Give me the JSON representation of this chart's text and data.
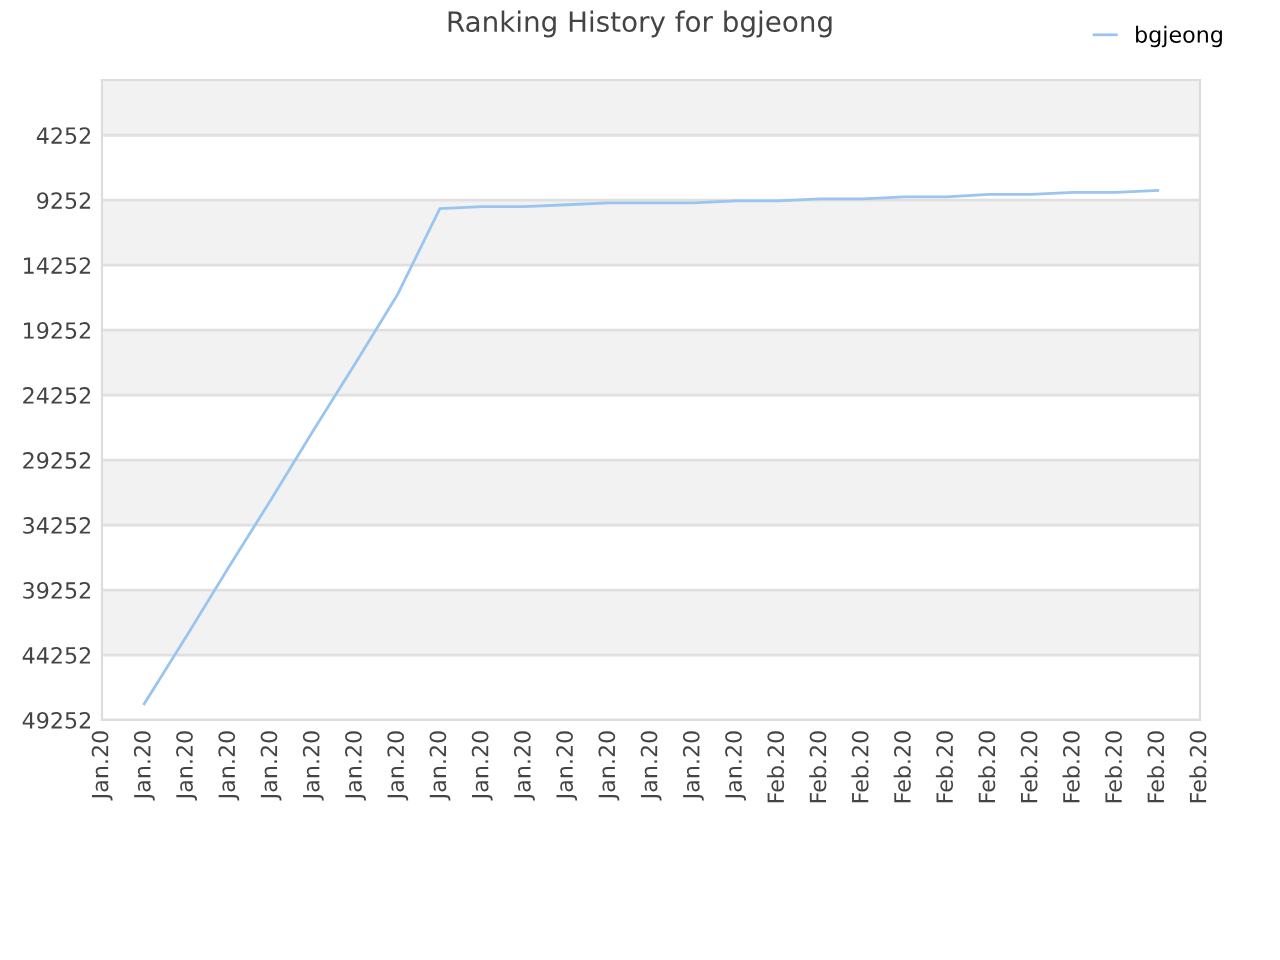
{
  "chart_data": {
    "type": "line",
    "title": "Ranking History for bgjeong",
    "categories": [
      "Jan.20",
      "Jan.20",
      "Jan.20",
      "Jan.20",
      "Jan.20",
      "Jan.20",
      "Jan.20",
      "Jan.20",
      "Jan.20",
      "Jan.20",
      "Jan.20",
      "Jan.20",
      "Jan.20",
      "Jan.20",
      "Jan.20",
      "Jan.20",
      "Feb.20",
      "Feb.20",
      "Feb.20",
      "Feb.20",
      "Feb.20",
      "Feb.20",
      "Feb.20",
      "Feb.20",
      "Feb.20",
      "Feb.20",
      "Feb.20"
    ],
    "series": [
      {
        "name": "bgjeong",
        "color": "#99c5f0",
        "values": [
          null,
          48000,
          42800,
          37500,
          32300,
          27000,
          21800,
          16500,
          9900,
          9750,
          9750,
          9600,
          9450,
          9450,
          9450,
          9300,
          9300,
          9150,
          9150,
          9000,
          9000,
          8800,
          8800,
          8650,
          8650,
          8500,
          null
        ]
      }
    ],
    "ylim": [
      49252,
      0
    ],
    "yticks": [
      4252,
      9252,
      14252,
      19252,
      24252,
      29252,
      34252,
      39252,
      44252,
      49252
    ],
    "grid": "y",
    "legend": "top right",
    "marker": "none",
    "line_style": "solid"
  }
}
